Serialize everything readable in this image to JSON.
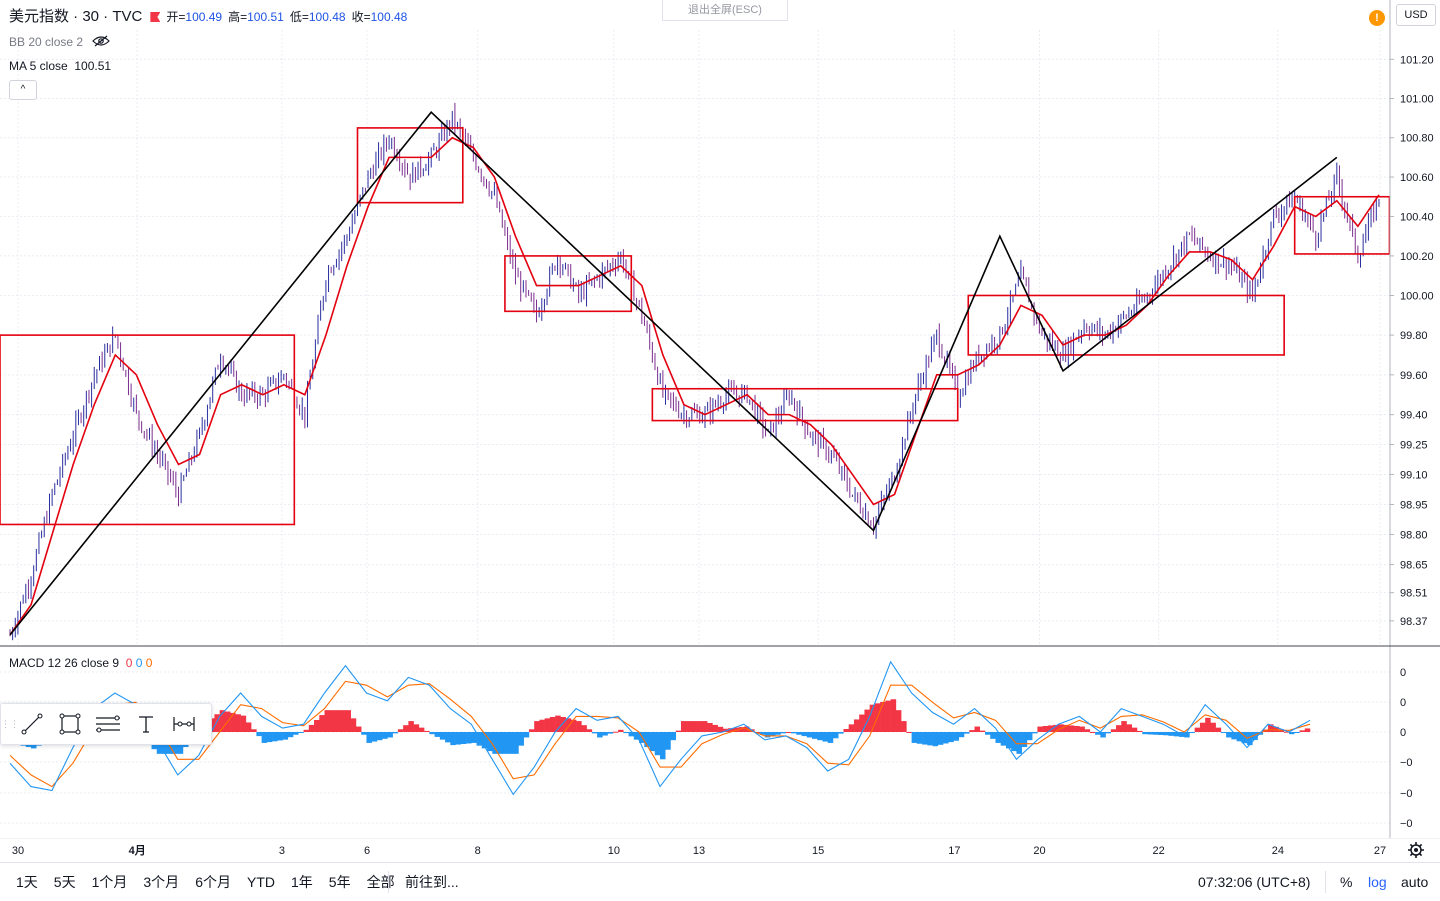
{
  "header": {
    "symbol": "美元指数 · 30 · TVC",
    "ohlc": [
      {
        "label": "开",
        "value": "100.49"
      },
      {
        "label": "高",
        "value": "100.51"
      },
      {
        "label": "低",
        "value": "100.48"
      },
      {
        "label": "收",
        "value": "100.48"
      }
    ],
    "bb_label": "BB 20 close 2",
    "ma_label": "MA 5 close",
    "ma_value": "100.51",
    "exit_fullscreen": "退出全屏(ESC)",
    "alert_symbol": "!",
    "currency": "USD",
    "collapse_symbol": "^"
  },
  "macd_legend": {
    "label": "MACD 12 26 close 9",
    "values": [
      "0",
      "0",
      "0"
    ]
  },
  "bottom_bar": {
    "ranges": [
      "1天",
      "5天",
      "1个月",
      "3个月",
      "6个月",
      "YTD",
      "1年",
      "5年",
      "全部"
    ],
    "goto": "前往到...",
    "clock": "07:32:06 (UTC+8)",
    "percent": "%",
    "log": "log",
    "auto": "auto"
  },
  "colors": {
    "up": "#2a2e9e",
    "down": "#7b2d8e",
    "drawing_red": "#e3000f",
    "zigzag_black": "#000000",
    "macd_line": "#2196f3",
    "signal_line": "#ff6d00",
    "hist_pos": "#f23645",
    "hist_neg": "#2196f3",
    "grid": "#e9ecf2"
  },
  "icons": [
    "eye-off-icon",
    "trend-line-icon",
    "rectangle-icon",
    "fib-lines-icon",
    "text-tool-icon",
    "measure-icon",
    "gear-icon"
  ],
  "chart_data": [
    {
      "type": "line",
      "title": "美元指数 · 30 · TVC",
      "xlabel": "",
      "ylabel": "",
      "scale": "log",
      "grid": true,
      "y_ticks": [
        101.2,
        101.0,
        100.8,
        100.6,
        100.4,
        100.2,
        100.0,
        99.8,
        99.6,
        99.4,
        99.25,
        99.1,
        98.95,
        98.8,
        98.65,
        98.51,
        98.37
      ],
      "y_tick_labels": [
        "101.20",
        "101.00",
        "100.80",
        "100.60",
        "100.40",
        "100.20",
        "100.00",
        "99.80",
        "99.60",
        "99.40",
        "99.25",
        "99.10",
        "98.95",
        "98.80",
        "98.65",
        "98.51",
        "98.37"
      ],
      "ylim": [
        98.25,
        101.35
      ],
      "x_tick_labels": [
        "30",
        "4月",
        "3",
        "6",
        "8",
        "10",
        "13",
        "15",
        "17",
        "20",
        "22",
        "24",
        "27"
      ],
      "series": [
        {
          "points": [
            [
              0,
              98.3
            ],
            [
              2,
              98.6
            ],
            [
              4,
              99.0
            ],
            [
              6,
              99.3
            ],
            [
              8,
              99.6
            ],
            [
              10,
              99.8
            ],
            [
              12,
              99.4
            ],
            [
              14,
              99.2
            ],
            [
              16,
              99.0
            ],
            [
              18,
              99.3
            ],
            [
              20,
              99.7
            ],
            [
              22,
              99.5
            ],
            [
              24,
              99.5
            ],
            [
              26,
              99.6
            ],
            [
              28,
              99.4
            ],
            [
              30,
              100.1
            ],
            [
              32,
              100.3
            ],
            [
              34,
              100.6
            ],
            [
              36,
              100.8
            ],
            [
              38,
              100.6
            ],
            [
              40,
              100.7
            ],
            [
              42,
              100.9
            ],
            [
              44,
              100.7
            ],
            [
              46,
              100.5
            ],
            [
              48,
              100.1
            ],
            [
              50,
              99.9
            ],
            [
              52,
              100.2
            ],
            [
              54,
              100.0
            ],
            [
              56,
              100.1
            ],
            [
              58,
              100.2
            ],
            [
              60,
              99.9
            ],
            [
              62,
              99.5
            ],
            [
              64,
              99.4
            ],
            [
              66,
              99.4
            ],
            [
              68,
              99.5
            ],
            [
              70,
              99.5
            ],
            [
              72,
              99.3
            ],
            [
              74,
              99.5
            ],
            [
              76,
              99.3
            ],
            [
              78,
              99.2
            ],
            [
              80,
              99.0
            ],
            [
              82,
              98.85
            ],
            [
              84,
              99.1
            ],
            [
              86,
              99.5
            ],
            [
              88,
              99.8
            ],
            [
              90,
              99.5
            ],
            [
              92,
              99.7
            ],
            [
              94,
              99.8
            ],
            [
              96,
              100.1
            ],
            [
              98,
              99.8
            ],
            [
              100,
              99.7
            ],
            [
              102,
              99.85
            ],
            [
              104,
              99.8
            ],
            [
              106,
              99.9
            ],
            [
              108,
              100.0
            ],
            [
              110,
              100.15
            ],
            [
              112,
              100.3
            ],
            [
              114,
              100.2
            ],
            [
              116,
              100.15
            ],
            [
              118,
              100.0
            ],
            [
              120,
              100.4
            ],
            [
              122,
              100.5
            ],
            [
              124,
              100.3
            ],
            [
              126,
              100.6
            ],
            [
              128,
              100.2
            ],
            [
              130,
              100.5
            ]
          ]
        },
        {
          "name": "MA 5 close",
          "points": [
            [
              0,
              98.3
            ],
            [
              2,
              98.45
            ],
            [
              4,
              98.8
            ],
            [
              6,
              99.15
            ],
            [
              8,
              99.45
            ],
            [
              10,
              99.7
            ],
            [
              12,
              99.6
            ],
            [
              14,
              99.35
            ],
            [
              16,
              99.15
            ],
            [
              18,
              99.2
            ],
            [
              20,
              99.5
            ],
            [
              22,
              99.55
            ],
            [
              24,
              99.5
            ],
            [
              26,
              99.55
            ],
            [
              28,
              99.5
            ],
            [
              30,
              99.8
            ],
            [
              32,
              100.15
            ],
            [
              34,
              100.45
            ],
            [
              36,
              100.7
            ],
            [
              38,
              100.7
            ],
            [
              40,
              100.7
            ],
            [
              42,
              100.8
            ],
            [
              44,
              100.75
            ],
            [
              46,
              100.6
            ],
            [
              48,
              100.3
            ],
            [
              50,
              100.05
            ],
            [
              52,
              100.05
            ],
            [
              54,
              100.05
            ],
            [
              56,
              100.1
            ],
            [
              58,
              100.15
            ],
            [
              60,
              100.05
            ],
            [
              62,
              99.7
            ],
            [
              64,
              99.45
            ],
            [
              66,
              99.4
            ],
            [
              68,
              99.45
            ],
            [
              70,
              99.5
            ],
            [
              72,
              99.4
            ],
            [
              74,
              99.4
            ],
            [
              76,
              99.35
            ],
            [
              78,
              99.25
            ],
            [
              80,
              99.1
            ],
            [
              82,
              98.95
            ],
            [
              84,
              99.0
            ],
            [
              86,
              99.3
            ],
            [
              88,
              99.6
            ],
            [
              90,
              99.6
            ],
            [
              92,
              99.65
            ],
            [
              94,
              99.75
            ],
            [
              96,
              99.95
            ],
            [
              98,
              99.9
            ],
            [
              100,
              99.75
            ],
            [
              102,
              99.8
            ],
            [
              104,
              99.8
            ],
            [
              106,
              99.85
            ],
            [
              108,
              99.95
            ],
            [
              110,
              100.1
            ],
            [
              112,
              100.22
            ],
            [
              114,
              100.22
            ],
            [
              116,
              100.18
            ],
            [
              118,
              100.08
            ],
            [
              120,
              100.25
            ],
            [
              122,
              100.45
            ],
            [
              124,
              100.4
            ],
            [
              126,
              100.48
            ],
            [
              128,
              100.35
            ],
            [
              130,
              100.51
            ]
          ]
        },
        {
          "name": "zigzag",
          "points": [
            [
              0,
              98.3
            ],
            [
              40,
              100.93
            ],
            [
              82,
              98.82
            ],
            [
              94,
              100.3
            ],
            [
              100,
              99.62
            ],
            [
              126,
              100.7
            ]
          ]
        }
      ],
      "rectangles": [
        {
          "x0": -2,
          "x1": 27,
          "y_top": 99.8,
          "y_bottom": 98.85
        },
        {
          "x0": 33,
          "x1": 43,
          "y_top": 100.85,
          "y_bottom": 100.47
        },
        {
          "x0": 47,
          "x1": 59,
          "y_top": 100.2,
          "y_bottom": 99.92
        },
        {
          "x0": 61,
          "x1": 90,
          "y_top": 99.53,
          "y_bottom": 99.37
        },
        {
          "x0": 91,
          "x1": 121,
          "y_top": 100.0,
          "y_bottom": 99.7
        },
        {
          "x0": 122,
          "x1": 131,
          "y_top": 100.5,
          "y_bottom": 100.21
        }
      ]
    },
    {
      "type": "line",
      "title": "MACD 12 26 close 9",
      "xlabel": "",
      "ylabel": "",
      "y_tick_labels": [
        "0",
        "0",
        "0",
        "−0",
        "−0",
        "−0"
      ],
      "ylim": [
        -1.05,
        1.05
      ],
      "series": [
        {
          "name": "MACD",
          "values": [
            -0.4,
            -0.7,
            -0.75,
            -0.2,
            0.3,
            0.5,
            0.35,
            -0.1,
            -0.55,
            -0.3,
            0.2,
            0.5,
            0.2,
            0.05,
            0.1,
            0.5,
            0.85,
            0.5,
            0.4,
            0.7,
            0.6,
            0.3,
            0.1,
            -0.35,
            -0.8,
            -0.45,
            0.0,
            0.3,
            0.15,
            0.2,
            -0.1,
            -0.7,
            -0.35,
            -0.05,
            0.0,
            0.1,
            -0.1,
            -0.05,
            -0.2,
            -0.5,
            -0.35,
            0.2,
            0.9,
            0.5,
            0.25,
            0.1,
            0.3,
            0.05,
            -0.35,
            -0.1,
            0.1,
            0.2,
            0.0,
            0.3,
            0.2,
            0.1,
            -0.05,
            0.35,
            0.1,
            -0.2,
            0.1,
            0.0,
            0.15
          ]
        },
        {
          "name": "Signal",
          "values": [
            -0.3,
            -0.55,
            -0.7,
            -0.4,
            0.05,
            0.35,
            0.38,
            0.1,
            -0.35,
            -0.35,
            0.0,
            0.35,
            0.3,
            0.12,
            0.08,
            0.3,
            0.65,
            0.6,
            0.45,
            0.6,
            0.62,
            0.42,
            0.2,
            -0.15,
            -0.6,
            -0.55,
            -0.15,
            0.2,
            0.2,
            0.18,
            0.0,
            -0.45,
            -0.45,
            -0.15,
            -0.03,
            0.05,
            -0.05,
            -0.05,
            -0.15,
            -0.4,
            -0.42,
            -0.05,
            0.6,
            0.6,
            0.38,
            0.18,
            0.25,
            0.15,
            -0.15,
            -0.15,
            0.03,
            0.15,
            0.05,
            0.2,
            0.22,
            0.13,
            0.0,
            0.22,
            0.15,
            -0.08,
            0.03,
            0.02,
            0.1
          ]
        }
      ]
    }
  ]
}
